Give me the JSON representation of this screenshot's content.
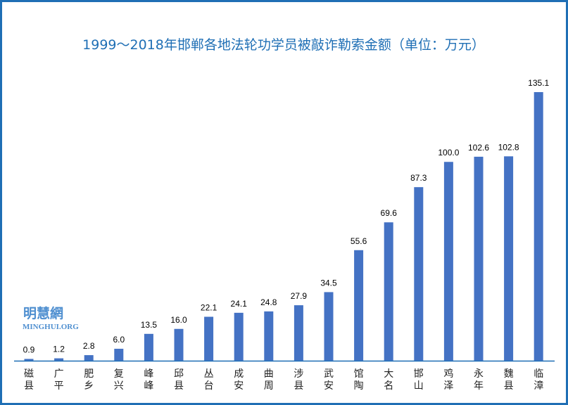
{
  "chart_data": {
    "type": "bar",
    "title": "1999～2018年邯郸各地法轮功学员被敲诈勒索金额（单位：万元）",
    "xlabel": "",
    "ylabel": "",
    "categories": [
      "磁县",
      "广平",
      "肥乡",
      "复兴",
      "峰峰",
      "邱县",
      "丛台",
      "成安",
      "曲周",
      "涉县",
      "武安",
      "馆陶",
      "大名",
      "邯山",
      "鸡泽",
      "永年",
      "魏县",
      "临漳"
    ],
    "values": [
      0.9,
      1.2,
      2.8,
      6.0,
      13.5,
      16.0,
      22.1,
      24.1,
      24.8,
      27.9,
      34.5,
      55.6,
      69.6,
      87.3,
      100.0,
      102.6,
      102.8,
      135.1
    ],
    "value_labels": [
      "0.9",
      "1.2",
      "2.8",
      "6.0",
      "13.5",
      "16.0",
      "22.1",
      "24.1",
      "24.8",
      "27.9",
      "34.5",
      "55.6",
      "69.6",
      "87.3",
      "100.0",
      "102.6",
      "102.8",
      "135.1"
    ],
    "ylim": [
      0,
      140
    ],
    "grid": false,
    "bar_color": "#4472c4",
    "axis_color": "#1f6fb5"
  },
  "logo": {
    "chinese": "明慧網",
    "english": "MINGHUI.ORG"
  }
}
